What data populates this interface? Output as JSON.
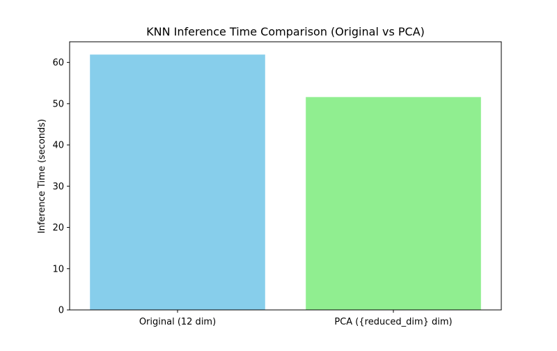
{
  "chart_data": {
    "type": "bar",
    "title": "KNN Inference Time Comparison (Original vs PCA)",
    "xlabel": "",
    "ylabel": "Inference Time (seconds)",
    "categories": [
      "Original (12 dim)",
      "PCA ({reduced_dim} dim)"
    ],
    "values": [
      61.9,
      51.6
    ],
    "colors": [
      "#87CEEB",
      "#90EE90"
    ],
    "ylim": [
      0,
      65
    ],
    "yticks": [
      0,
      10,
      20,
      30,
      40,
      50,
      60
    ],
    "grid": false,
    "legend": "none"
  }
}
